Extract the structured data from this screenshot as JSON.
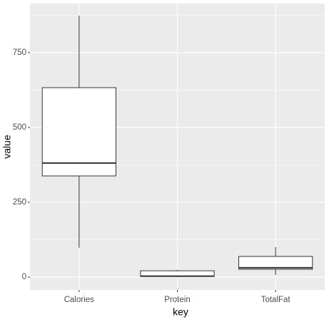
{
  "chart_data": {
    "type": "box",
    "x_label": "key",
    "y_label": "value",
    "categories": [
      "Calories",
      "Protein",
      "TotalFat"
    ],
    "boxes": [
      {
        "min": 98,
        "q1": 338,
        "median": 381,
        "q3": 633,
        "max": 874
      },
      {
        "min": 0,
        "q1": 2,
        "median": 3,
        "q3": 21,
        "max": 24
      },
      {
        "min": 7,
        "q1": 26,
        "median": 31,
        "q3": 69,
        "max": 100
      }
    ],
    "ylim": [
      -43,
      914
    ],
    "yticks": [
      0,
      250,
      500,
      750
    ],
    "minor_yticks": [
      125,
      375,
      625,
      875
    ],
    "grid": true,
    "panel_color": "#ebebeb",
    "box_color": "#ffffff",
    "line_color": "#333333"
  }
}
